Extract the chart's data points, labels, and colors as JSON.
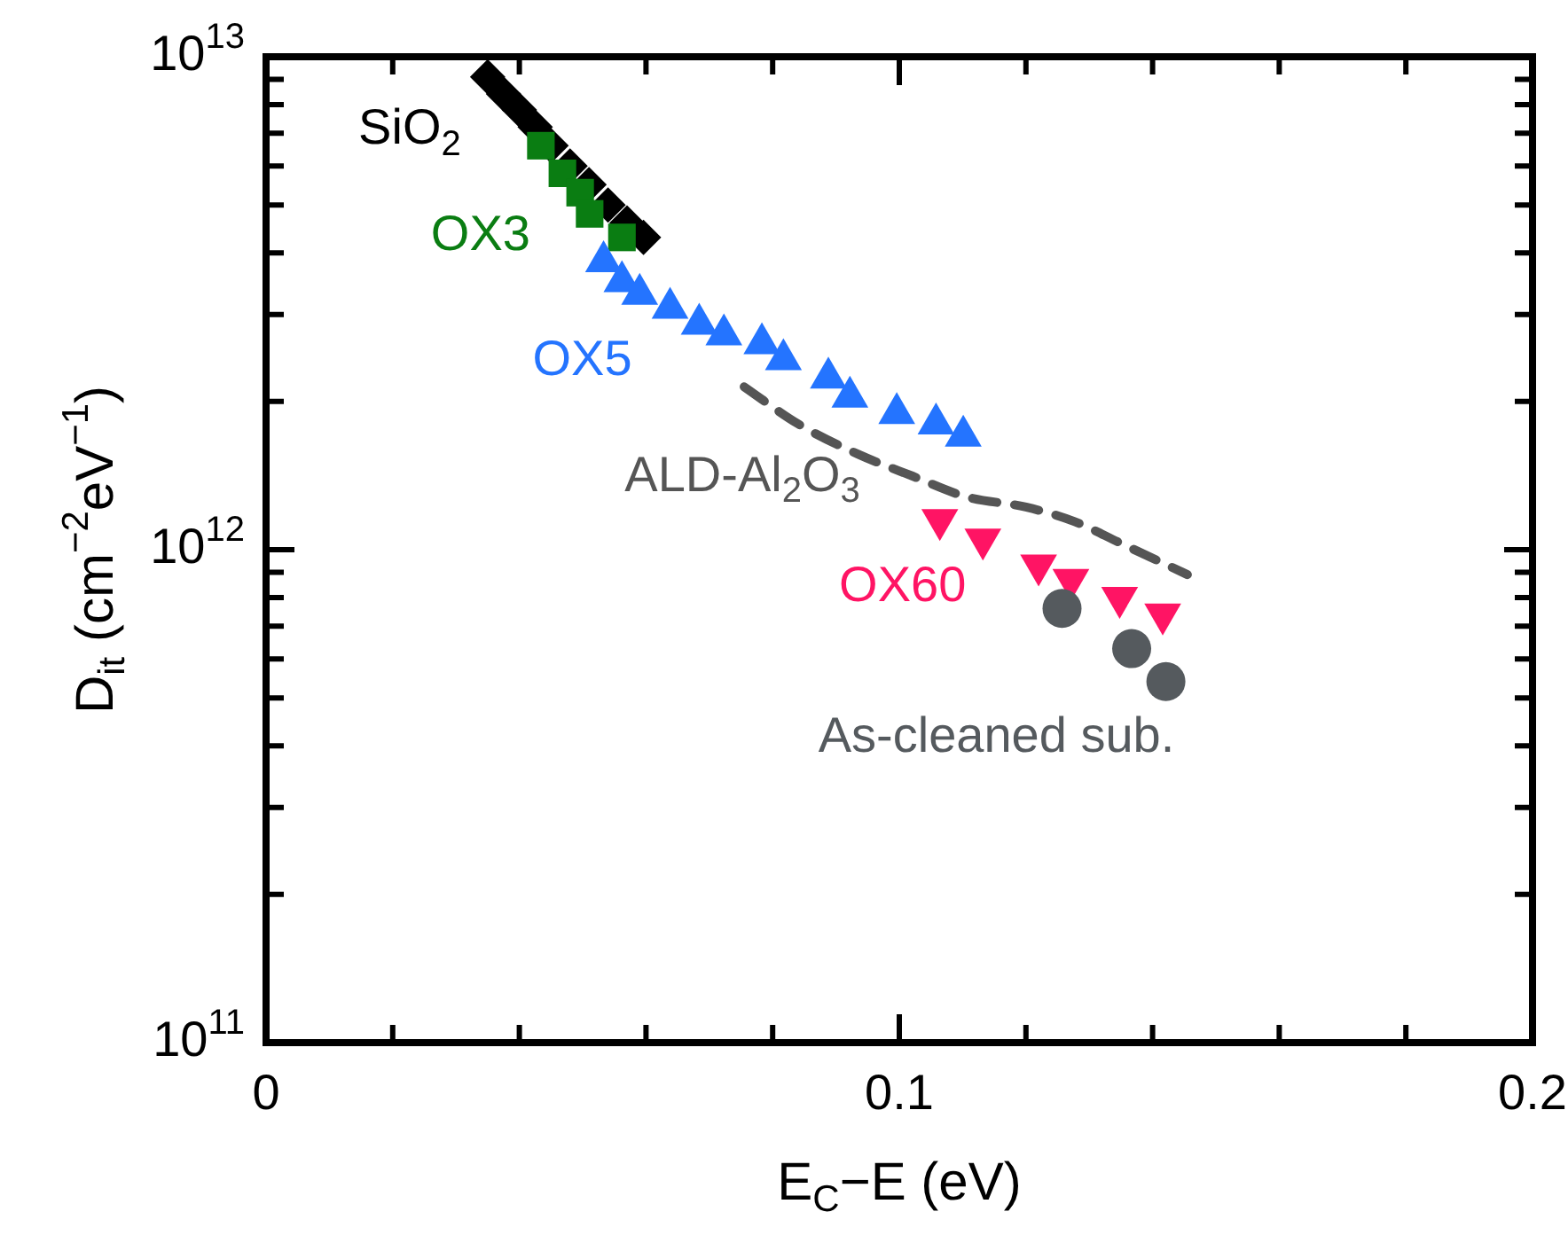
{
  "chart_data": {
    "type": "scatter",
    "xlabel": "E$_{C}$−E (eV)",
    "ylabel": "D$_{it}$ (cm$^{−2}$eV$^{−1}$)",
    "log": "y",
    "grid": false,
    "xlim": [
      0,
      0.2
    ],
    "xticks": [
      0,
      {
        "value": 0.02,
        "label": null
      },
      {
        "value": 0.04,
        "label": null
      },
      {
        "value": 0.06,
        "label": null
      },
      {
        "value": 0.08,
        "label": null
      },
      0.1,
      {
        "value": 0.12,
        "label": null
      },
      {
        "value": 0.14,
        "label": null
      },
      {
        "value": 0.16,
        "label": null
      },
      {
        "value": 0.18,
        "label": null
      },
      0.2
    ],
    "ylim": [
      100000000000.0,
      10000000000000.0
    ],
    "yticks": [
      {
        "value": 100000000000.0,
        "label": "10$^{11}$"
      },
      {
        "value": 200000000000.0,
        "label": null
      },
      {
        "value": 300000000000.0,
        "label": null
      },
      {
        "value": 400000000000.0,
        "label": null
      },
      {
        "value": 500000000000.0,
        "label": null
      },
      {
        "value": 600000000000.0,
        "label": null
      },
      {
        "value": 700000000000.0,
        "label": null
      },
      {
        "value": 800000000000.0,
        "label": null
      },
      {
        "value": 900000000000.0,
        "label": null
      },
      {
        "value": 1000000000000.0,
        "label": "10$^{12}$"
      },
      {
        "value": 2000000000000.0,
        "label": null
      },
      {
        "value": 3000000000000.0,
        "label": null
      },
      {
        "value": 4000000000000.0,
        "label": null
      },
      {
        "value": 5000000000000.0,
        "label": null
      },
      {
        "value": 6000000000000.0,
        "label": null
      },
      {
        "value": 7000000000000.0,
        "label": null
      },
      {
        "value": 8000000000000.0,
        "label": null
      },
      {
        "value": 9000000000000.0,
        "label": null
      },
      {
        "value": 10000000000000.0,
        "label": "10$^{13}$"
      }
    ],
    "series": [
      {
        "name": "SiO$_{2}$",
        "type": "scatter",
        "marker": "diamond",
        "color": "#000000",
        "x": [
          0.035,
          0.0375,
          0.04,
          0.0425,
          0.045,
          0.048,
          0.051,
          0.054,
          0.057,
          0.0596
        ],
        "values": [
          9100000000000.0,
          8400000000000.0,
          7800000000000.0,
          7200000000000.0,
          6600000000000.0,
          6000000000000.0,
          5500000000000.0,
          5000000000000.0,
          4600000000000.0,
          4300000000000.0
        ]
      },
      {
        "name": "OX3",
        "type": "scatter",
        "marker": "square",
        "color": "#0a7d12",
        "x": [
          0.0434,
          0.0468,
          0.0496,
          0.0511,
          0.0562
        ],
        "values": [
          6600000000000.0,
          5800000000000.0,
          5300000000000.0,
          4800000000000.0,
          4300000000000.0
        ]
      },
      {
        "name": "OX5",
        "type": "scatter",
        "marker": "triangle",
        "color": "#2474ff",
        "x": [
          0.0533,
          0.0562,
          0.059,
          0.0638,
          0.0684,
          0.0723,
          0.0783,
          0.0817,
          0.0888,
          0.0922,
          0.0996,
          0.1058,
          0.1101
        ],
        "values": [
          3840000000000.0,
          3500000000000.0,
          3300000000000.0,
          3090000000000.0,
          2870000000000.0,
          2730000000000.0,
          2620000000000.0,
          2430000000000.0,
          2230000000000.0,
          2040000000000.0,
          1890000000000.0,
          1800000000000.0,
          1700000000000.0
        ]
      },
      {
        "name": "ALD-Al$_{2}$O$_{3}$",
        "type": "line",
        "line_style": "dashed",
        "marker": "none",
        "color": "#555555",
        "x": [
          0.0755,
          0.084,
          0.0936,
          0.1021,
          0.1106,
          0.12,
          0.1277,
          0.135,
          0.1455
        ],
        "values": [
          2140000000000.0,
          1800000000000.0,
          1560000000000.0,
          1410000000000.0,
          1280000000000.0,
          1220000000000.0,
          1140000000000.0,
          1030000000000.0,
          890000000000.0
        ]
      },
      {
        "name": "OX60",
        "type": "scatter",
        "marker": "triangle-down",
        "color": "#ff1464",
        "x": [
          0.1064,
          0.1132,
          0.122,
          0.1271,
          0.1348,
          0.1416
        ],
        "values": [
          1150000000000.0,
          1050000000000.0,
          930000000000.0,
          870000000000.0,
          800000000000.0,
          740000000000.0
        ]
      },
      {
        "name": "As-cleaned sub.",
        "type": "scatter",
        "marker": "circle",
        "color": "#555a5e",
        "x": [
          0.1257,
          0.1367,
          0.1421
        ],
        "values": [
          760000000000.0,
          630000000000.0,
          540000000000.0
        ]
      }
    ]
  }
}
